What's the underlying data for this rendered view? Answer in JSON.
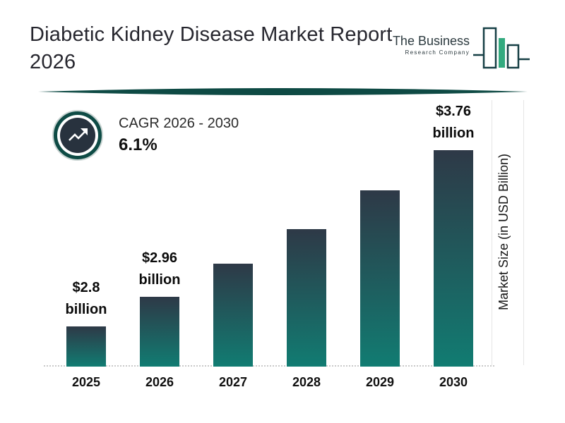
{
  "header": {
    "title_line1": "Diabetic Kidney Disease Market Report",
    "title_line2": "2026",
    "logo": {
      "name": "The Business",
      "subtitle": "Research Company"
    }
  },
  "cagr": {
    "label": "CAGR 2026 - 2030",
    "value": "6.1%"
  },
  "chart_data": {
    "type": "bar",
    "title": "Diabetic Kidney Disease Market Report 2026",
    "categories": [
      "2025",
      "2026",
      "2027",
      "2028",
      "2029",
      "2030"
    ],
    "values": [
      2.8,
      2.96,
      3.14,
      3.33,
      3.54,
      3.76
    ],
    "bar_labels": [
      [
        "$2.8",
        "billion"
      ],
      [
        "$2.96",
        "billion"
      ],
      [],
      [],
      [],
      [
        "$3.76",
        "billion"
      ]
    ],
    "xlabel": "",
    "ylabel": "Market Size (in USD Billion)",
    "ylim": [
      2.58,
      3.8
    ],
    "legend": "none",
    "grid": "faint vertical gridlines at right edge, dotted baseline",
    "annotation": "CAGR 2026 - 2030 : 6.1%"
  },
  "colors": {
    "bar_gradient_top": "#2E3947",
    "bar_gradient_bottom": "#117C72",
    "accent_teal": "#0E4A44",
    "badge_inner_navy": "#28323E",
    "title_text": "#26262E",
    "logo_outline": "#163F45",
    "logo_fill_green": "#33AA7F"
  }
}
